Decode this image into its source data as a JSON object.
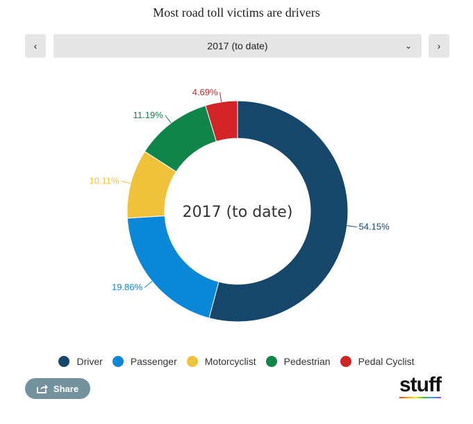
{
  "title": "Most road toll victims are drivers",
  "controls": {
    "prev": "‹",
    "next": "›",
    "selected": "2017 (to date)",
    "chevron": "⌄"
  },
  "share_label": "Share",
  "logo": "stuff",
  "chart_data": {
    "type": "pie",
    "variant": "donut",
    "title": "Most road toll victims are drivers",
    "center_label": "2017 (to date)",
    "categories": [
      "Driver",
      "Passenger",
      "Motorcyclist",
      "Pedestrian",
      "Pedal Cyclist"
    ],
    "values": [
      54.15,
      19.86,
      10.11,
      11.19,
      4.69
    ],
    "labels": [
      "54.15%",
      "19.86%",
      "10.11%",
      "11.19%",
      "4.69%"
    ],
    "colors": [
      "#17466b",
      "#0a87d6",
      "#f0c23a",
      "#10854a",
      "#d22327"
    ],
    "legend_position": "bottom"
  }
}
